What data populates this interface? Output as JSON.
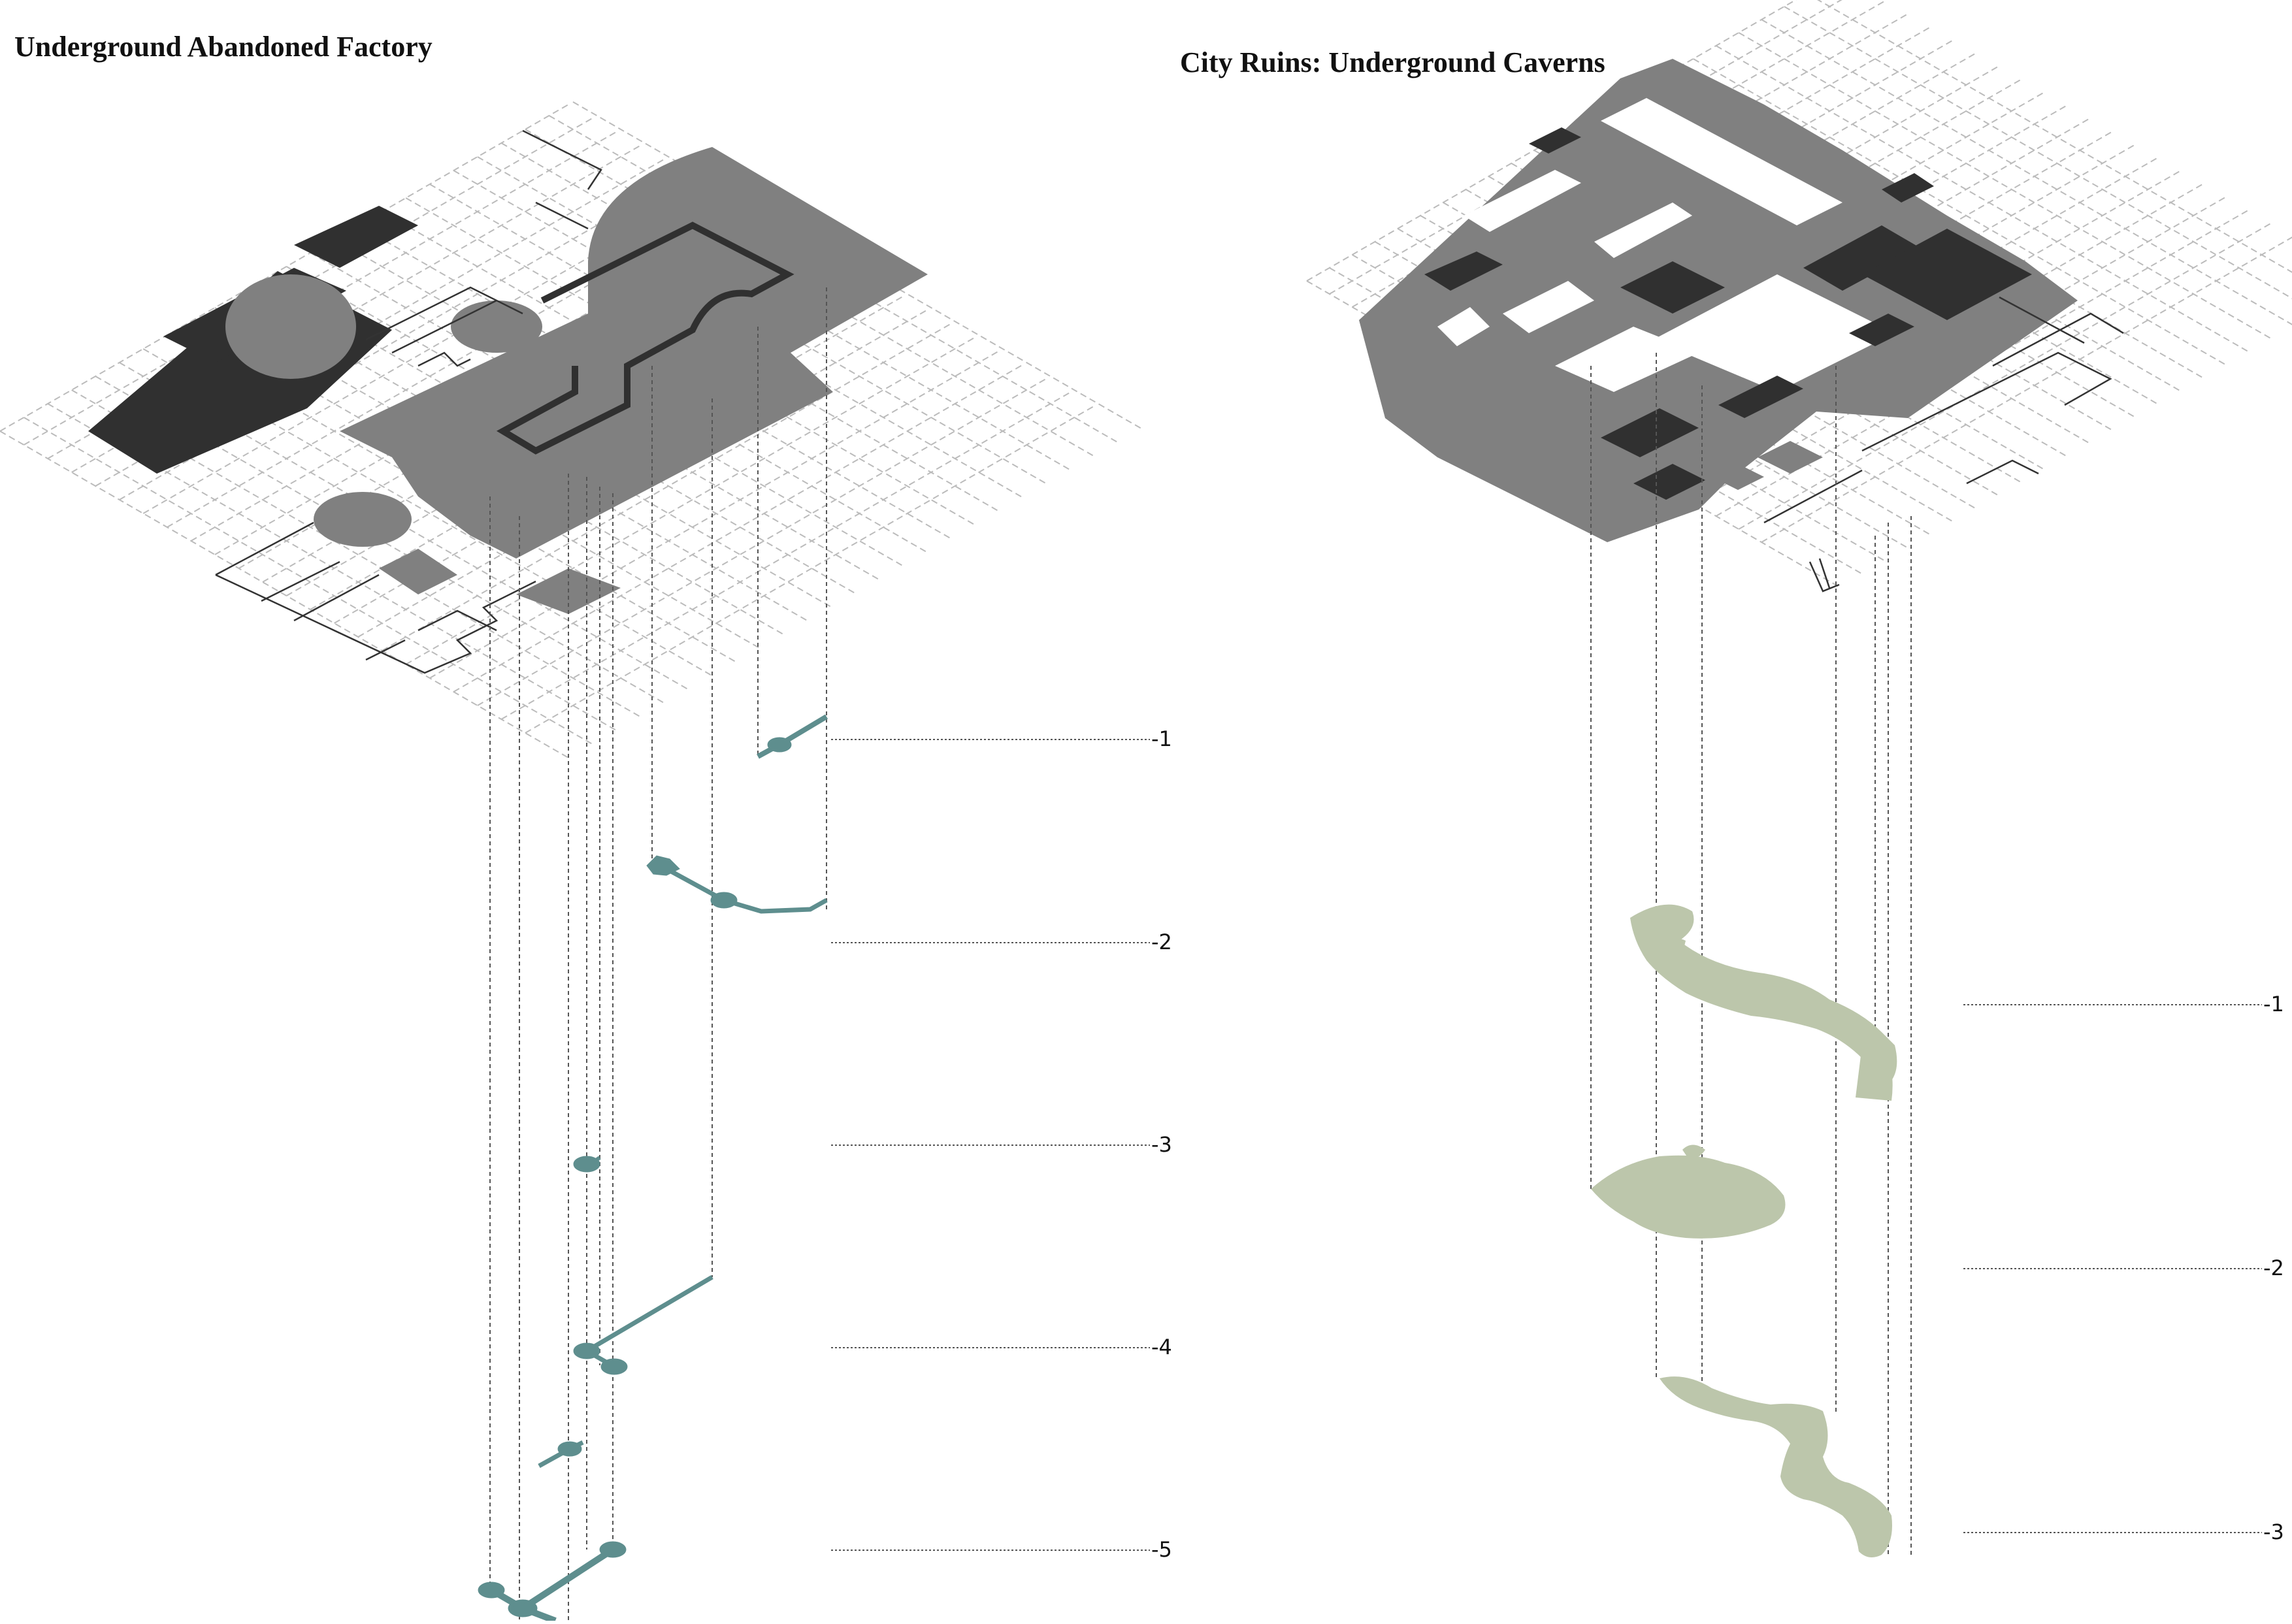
{
  "left_panel": {
    "title": "Underground Abandoned Factory",
    "levels": [
      "-1",
      "-2",
      "-3",
      "-4",
      "-5"
    ]
  },
  "right_panel": {
    "title": "City Ruins: Underground Caverns",
    "levels": [
      "-1",
      "-2",
      "-3"
    ]
  },
  "colors": {
    "plan_light": "#808080",
    "plan_dark": "#303030",
    "grid": "#bbbbbb",
    "outline": "#333333",
    "factory_tunnels": "#5e8e8e",
    "caverns": "#bcc6ab",
    "leader": "#555555"
  }
}
